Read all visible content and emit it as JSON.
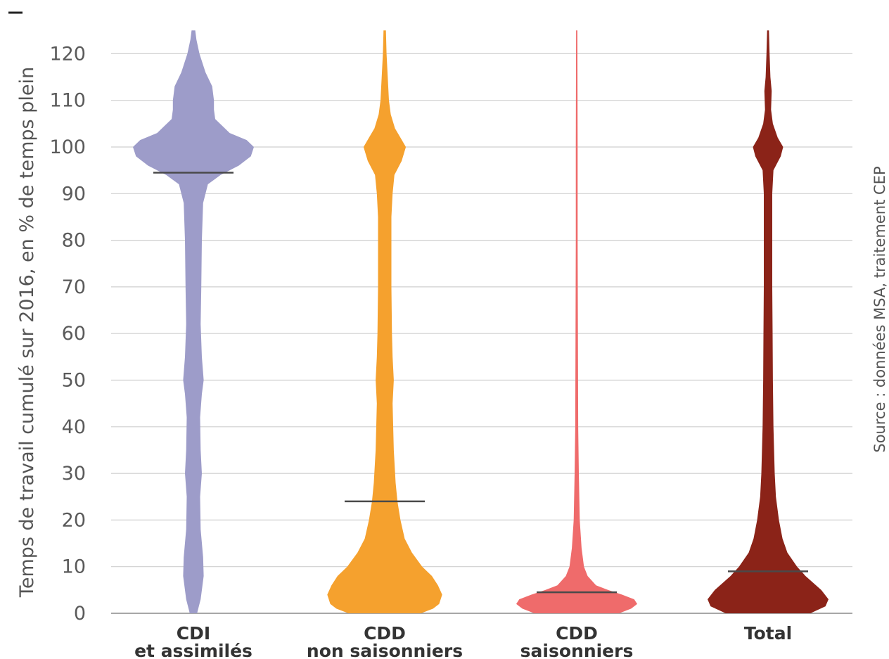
{
  "chart_data": {
    "type": "violin",
    "ylabel": "Temps de travail cumulé sur 2016, en % de temps plein",
    "ylim": [
      0,
      125
    ],
    "yticks": [
      0,
      10,
      20,
      30,
      40,
      50,
      60,
      70,
      80,
      90,
      100,
      110,
      120
    ],
    "grid": true,
    "source": "Source : données MSA, traitement CEP",
    "categories": [
      {
        "line1": "CDI",
        "line2": "et assimilés"
      },
      {
        "line1": "CDD",
        "line2": "non saisonniers"
      },
      {
        "line1": "CDD",
        "line2": "saisonniers"
      },
      {
        "line1": "Total",
        "line2": ""
      }
    ],
    "series": [
      {
        "color": "#9d9cc9",
        "median": 94.5,
        "density": [
          [
            0,
            0.06
          ],
          [
            3,
            0.12
          ],
          [
            8,
            0.17
          ],
          [
            12,
            0.16
          ],
          [
            18,
            0.12
          ],
          [
            25,
            0.11
          ],
          [
            30,
            0.14
          ],
          [
            35,
            0.12
          ],
          [
            42,
            0.11
          ],
          [
            47,
            0.14
          ],
          [
            50,
            0.17
          ],
          [
            55,
            0.14
          ],
          [
            62,
            0.12
          ],
          [
            70,
            0.13
          ],
          [
            80,
            0.14
          ],
          [
            88,
            0.16
          ],
          [
            92,
            0.24
          ],
          [
            94,
            0.45
          ],
          [
            96,
            0.75
          ],
          [
            98,
            0.95
          ],
          [
            100,
            1.0
          ],
          [
            101.5,
            0.88
          ],
          [
            103,
            0.6
          ],
          [
            106,
            0.36
          ],
          [
            108,
            0.34
          ],
          [
            110,
            0.34
          ],
          [
            113,
            0.31
          ],
          [
            116,
            0.2
          ],
          [
            120,
            0.1
          ],
          [
            123,
            0.05
          ],
          [
            125,
            0.03
          ]
        ]
      },
      {
        "color": "#f5a12e",
        "median": 24,
        "density": [
          [
            0,
            0.6
          ],
          [
            1,
            0.8
          ],
          [
            2,
            0.9
          ],
          [
            4,
            0.95
          ],
          [
            6,
            0.88
          ],
          [
            8,
            0.78
          ],
          [
            10,
            0.62
          ],
          [
            13,
            0.45
          ],
          [
            16,
            0.33
          ],
          [
            20,
            0.26
          ],
          [
            24,
            0.21
          ],
          [
            28,
            0.18
          ],
          [
            35,
            0.15
          ],
          [
            45,
            0.13
          ],
          [
            50,
            0.15
          ],
          [
            55,
            0.13
          ],
          [
            60,
            0.12
          ],
          [
            70,
            0.11
          ],
          [
            80,
            0.11
          ],
          [
            85,
            0.11
          ],
          [
            90,
            0.13
          ],
          [
            94,
            0.16
          ],
          [
            97,
            0.28
          ],
          [
            100,
            0.35
          ],
          [
            102,
            0.26
          ],
          [
            104,
            0.17
          ],
          [
            107,
            0.1
          ],
          [
            110,
            0.07
          ],
          [
            115,
            0.05
          ],
          [
            120,
            0.03
          ],
          [
            125,
            0.02
          ]
        ]
      },
      {
        "color": "#ef6b6b",
        "median": 4.5,
        "density": [
          [
            0,
            0.7
          ],
          [
            1,
            0.9
          ],
          [
            2,
            1.0
          ],
          [
            3,
            0.95
          ],
          [
            4,
            0.75
          ],
          [
            5,
            0.52
          ],
          [
            6,
            0.32
          ],
          [
            8,
            0.18
          ],
          [
            10,
            0.12
          ],
          [
            14,
            0.08
          ],
          [
            20,
            0.05
          ],
          [
            30,
            0.035
          ],
          [
            40,
            0.025
          ],
          [
            60,
            0.02
          ],
          [
            80,
            0.015
          ],
          [
            100,
            0.015
          ],
          [
            125,
            0.01
          ]
        ]
      },
      {
        "color": "#8b2318",
        "median": 9,
        "density": [
          [
            0,
            0.7
          ],
          [
            1.5,
            0.95
          ],
          [
            3,
            1.0
          ],
          [
            5,
            0.88
          ],
          [
            8,
            0.62
          ],
          [
            10,
            0.48
          ],
          [
            13,
            0.32
          ],
          [
            16,
            0.24
          ],
          [
            20,
            0.18
          ],
          [
            25,
            0.13
          ],
          [
            30,
            0.11
          ],
          [
            40,
            0.09
          ],
          [
            50,
            0.08
          ],
          [
            60,
            0.075
          ],
          [
            70,
            0.07
          ],
          [
            80,
            0.07
          ],
          [
            90,
            0.07
          ],
          [
            95,
            0.09
          ],
          [
            98,
            0.21
          ],
          [
            100,
            0.25
          ],
          [
            102,
            0.16
          ],
          [
            105,
            0.08
          ],
          [
            108,
            0.05
          ],
          [
            112,
            0.06
          ],
          [
            115,
            0.04
          ],
          [
            120,
            0.025
          ],
          [
            125,
            0.015
          ]
        ]
      }
    ]
  }
}
